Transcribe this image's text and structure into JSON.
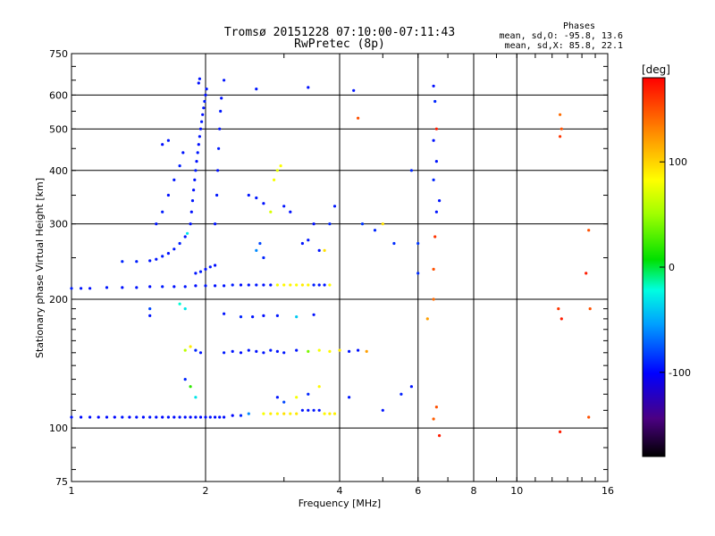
{
  "chart_data": {
    "type": "scatter",
    "title": "Tromsø 20151228 07:10:00-07:11:43",
    "subtitle": "RwPretec (8p)",
    "stats": {
      "heading": "Phases",
      "line1": "mean, sd,O: -95.8, 13.6",
      "line2": "mean, sd,X:  85.8, 22.1"
    },
    "xlabel": "Frequency [MHz]",
    "ylabel": "Stationary phase Virtual Height [km]",
    "x_scale": "log",
    "y_scale": "log",
    "xlim": [
      1,
      16
    ],
    "ylim": [
      75,
      750
    ],
    "x_ticks": [
      1,
      2,
      4,
      6,
      8,
      10,
      16
    ],
    "y_ticks": [
      75,
      100,
      200,
      300,
      400,
      500,
      600,
      750
    ],
    "grid": true,
    "colorbar": {
      "label": "[deg]",
      "range": [
        -180,
        180
      ],
      "ticks": [
        100,
        0,
        -100
      ]
    },
    "series": [
      {
        "points": [
          [
            1.0,
            106,
            -95
          ],
          [
            1.05,
            106,
            -98
          ],
          [
            1.1,
            106,
            -96
          ],
          [
            1.15,
            106,
            -100
          ],
          [
            1.2,
            106,
            -97
          ],
          [
            1.25,
            106,
            -99
          ],
          [
            1.3,
            106,
            -95
          ],
          [
            1.35,
            106,
            -100
          ],
          [
            1.4,
            106,
            -96
          ],
          [
            1.45,
            106,
            -98
          ],
          [
            1.5,
            106,
            -94
          ],
          [
            1.55,
            106,
            -97
          ],
          [
            1.6,
            106,
            -99
          ],
          [
            1.65,
            106,
            -96
          ],
          [
            1.7,
            106,
            -98
          ],
          [
            1.75,
            106,
            -95
          ],
          [
            1.8,
            106,
            -97
          ],
          [
            1.85,
            106,
            -99
          ],
          [
            1.9,
            106,
            -96
          ],
          [
            1.95,
            106,
            -98
          ],
          [
            2.0,
            106,
            -97
          ],
          [
            2.05,
            106,
            -95
          ],
          [
            2.1,
            106,
            -98
          ],
          [
            2.15,
            106,
            -96
          ],
          [
            2.2,
            106,
            -97
          ],
          [
            2.3,
            107,
            -99
          ],
          [
            2.4,
            107,
            -90
          ],
          [
            2.5,
            108,
            -60
          ],
          [
            2.7,
            108,
            80
          ],
          [
            2.8,
            108,
            90
          ],
          [
            2.9,
            108,
            85
          ],
          [
            3.0,
            108,
            95
          ],
          [
            3.1,
            108,
            88
          ],
          [
            3.2,
            108,
            92
          ],
          [
            3.3,
            110,
            -95
          ],
          [
            3.4,
            110,
            -97
          ],
          [
            3.5,
            110,
            -94
          ],
          [
            3.6,
            110,
            -96
          ],
          [
            3.7,
            108,
            85
          ],
          [
            3.8,
            108,
            90
          ],
          [
            3.9,
            108,
            88
          ],
          [
            1.0,
            212,
            -92
          ],
          [
            1.05,
            212,
            -95
          ],
          [
            1.1,
            212,
            -97
          ],
          [
            1.2,
            213,
            -94
          ],
          [
            1.3,
            213,
            -96
          ],
          [
            1.4,
            213,
            -95
          ],
          [
            1.5,
            214,
            -97
          ],
          [
            1.6,
            214,
            -93
          ],
          [
            1.7,
            214,
            -96
          ],
          [
            1.8,
            214,
            -95
          ],
          [
            1.9,
            215,
            -97
          ],
          [
            2.0,
            215,
            -94
          ],
          [
            2.1,
            215,
            -96
          ],
          [
            2.2,
            215,
            -95
          ],
          [
            2.3,
            216,
            -93
          ],
          [
            2.4,
            216,
            -97
          ],
          [
            2.5,
            216,
            -95
          ],
          [
            2.6,
            216,
            -94
          ],
          [
            2.7,
            216,
            -96
          ],
          [
            2.8,
            216,
            -95
          ],
          [
            2.9,
            216,
            80
          ],
          [
            3.0,
            216,
            85
          ],
          [
            3.1,
            216,
            88
          ],
          [
            3.2,
            216,
            82
          ],
          [
            3.3,
            216,
            90
          ],
          [
            3.4,
            216,
            86
          ],
          [
            3.5,
            216,
            -92
          ],
          [
            3.6,
            216,
            -95
          ],
          [
            3.7,
            216,
            -94
          ],
          [
            3.8,
            216,
            84
          ],
          [
            1.3,
            245,
            -90
          ],
          [
            1.4,
            245,
            -92
          ],
          [
            1.5,
            246,
            -94
          ],
          [
            1.55,
            248,
            -95
          ],
          [
            1.6,
            252,
            -93
          ],
          [
            1.65,
            256,
            -96
          ],
          [
            1.7,
            262,
            -94
          ],
          [
            1.75,
            270,
            -92
          ],
          [
            1.8,
            280,
            -95
          ],
          [
            1.82,
            285,
            -30
          ],
          [
            1.55,
            300,
            -95
          ],
          [
            1.6,
            320,
            -93
          ],
          [
            1.65,
            350,
            -96
          ],
          [
            1.7,
            380,
            -94
          ],
          [
            1.75,
            410,
            -92
          ],
          [
            1.78,
            440,
            -95
          ],
          [
            1.6,
            460,
            -97
          ],
          [
            1.65,
            470,
            -94
          ],
          [
            1.85,
            300,
            -95
          ],
          [
            1.86,
            320,
            -96
          ],
          [
            1.87,
            340,
            -94
          ],
          [
            1.88,
            360,
            -97
          ],
          [
            1.89,
            380,
            -95
          ],
          [
            1.9,
            400,
            -93
          ],
          [
            1.91,
            420,
            -96
          ],
          [
            1.92,
            440,
            -94
          ],
          [
            1.93,
            460,
            -97
          ],
          [
            1.94,
            480,
            -95
          ],
          [
            1.95,
            500,
            -96
          ],
          [
            1.96,
            520,
            -94
          ],
          [
            1.97,
            540,
            -97
          ],
          [
            1.98,
            560,
            -95
          ],
          [
            1.99,
            580,
            -93
          ],
          [
            2.0,
            600,
            -96
          ],
          [
            2.01,
            620,
            -94
          ],
          [
            1.93,
            640,
            -97
          ],
          [
            1.94,
            655,
            -95
          ],
          [
            1.9,
            230,
            -95
          ],
          [
            1.95,
            232,
            -93
          ],
          [
            2.0,
            235,
            -96
          ],
          [
            2.05,
            238,
            -94
          ],
          [
            2.1,
            240,
            -97
          ],
          [
            2.1,
            300,
            -95
          ],
          [
            2.12,
            350,
            -94
          ],
          [
            2.13,
            400,
            -96
          ],
          [
            2.14,
            450,
            -93
          ],
          [
            2.15,
            500,
            -95
          ],
          [
            2.16,
            550,
            -94
          ],
          [
            2.17,
            590,
            -96
          ],
          [
            2.5,
            350,
            -95
          ],
          [
            2.6,
            345,
            -94
          ],
          [
            2.7,
            335,
            -96
          ],
          [
            2.8,
            320,
            70
          ],
          [
            2.85,
            380,
            80
          ],
          [
            2.9,
            400,
            75
          ],
          [
            2.95,
            410,
            82
          ],
          [
            2.6,
            260,
            -60
          ],
          [
            2.65,
            270,
            -80
          ],
          [
            2.7,
            250,
            -90
          ],
          [
            3.0,
            330,
            -95
          ],
          [
            3.1,
            320,
            -96
          ],
          [
            3.3,
            270,
            -95
          ],
          [
            3.4,
            275,
            -94
          ],
          [
            3.5,
            300,
            -96
          ],
          [
            3.6,
            260,
            -95
          ],
          [
            3.7,
            260,
            95
          ],
          [
            3.8,
            300,
            -90
          ],
          [
            3.9,
            330,
            -94
          ],
          [
            2.2,
            185,
            -95
          ],
          [
            1.5,
            190,
            -80
          ],
          [
            1.75,
            195,
            -20
          ],
          [
            1.8,
            190,
            -30
          ],
          [
            2.4,
            182,
            -90
          ],
          [
            2.55,
            182,
            -95
          ],
          [
            2.7,
            183,
            -97
          ],
          [
            2.9,
            183,
            -94
          ],
          [
            3.2,
            182,
            -40
          ],
          [
            3.5,
            184,
            -96
          ],
          [
            1.8,
            152,
            60
          ],
          [
            1.85,
            155,
            90
          ],
          [
            1.9,
            152,
            -90
          ],
          [
            1.95,
            150,
            -95
          ],
          [
            2.2,
            150,
            -93
          ],
          [
            2.3,
            151,
            -95
          ],
          [
            2.4,
            150,
            -97
          ],
          [
            2.5,
            152,
            -94
          ],
          [
            2.6,
            151,
            -96
          ],
          [
            2.7,
            150,
            -95
          ],
          [
            2.8,
            152,
            -93
          ],
          [
            2.9,
            151,
            -96
          ],
          [
            3.0,
            150,
            -94
          ],
          [
            3.2,
            152,
            -95
          ],
          [
            3.4,
            151,
            40
          ],
          [
            3.6,
            152,
            80
          ],
          [
            3.8,
            151,
            85
          ],
          [
            4.0,
            152,
            90
          ],
          [
            4.2,
            151,
            -95
          ],
          [
            4.4,
            152,
            -96
          ],
          [
            4.6,
            151,
            120
          ],
          [
            1.8,
            130,
            -90
          ],
          [
            1.85,
            125,
            20
          ],
          [
            1.9,
            118,
            -30
          ],
          [
            2.9,
            118,
            -95
          ],
          [
            3.0,
            115,
            -80
          ],
          [
            3.2,
            118,
            80
          ],
          [
            3.4,
            120,
            -90
          ],
          [
            3.6,
            125,
            85
          ],
          [
            4.2,
            118,
            -94
          ],
          [
            5.0,
            110,
            -95
          ],
          [
            5.5,
            120,
            -92
          ],
          [
            5.8,
            125,
            -95
          ],
          [
            1.5,
            183,
            -95
          ],
          [
            2.2,
            650,
            -95
          ],
          [
            2.6,
            620,
            -94
          ],
          [
            3.4,
            625,
            -96
          ],
          [
            4.3,
            615,
            -95
          ],
          [
            4.4,
            530,
            150
          ],
          [
            6.3,
            180,
            120
          ],
          [
            6.5,
            200,
            140
          ],
          [
            6.5,
            235,
            150
          ],
          [
            6.55,
            280,
            160
          ],
          [
            6.6,
            320,
            -95
          ],
          [
            6.7,
            340,
            -95
          ],
          [
            6.5,
            380,
            -90
          ],
          [
            6.6,
            420,
            -95
          ],
          [
            6.5,
            470,
            -96
          ],
          [
            6.6,
            500,
            170
          ],
          [
            6.55,
            580,
            -90
          ],
          [
            6.5,
            630,
            -97
          ],
          [
            6.6,
            112,
            150
          ],
          [
            6.7,
            96,
            170
          ],
          [
            6.5,
            105,
            145
          ],
          [
            12.5,
            540,
            140
          ],
          [
            12.6,
            500,
            150
          ],
          [
            12.5,
            480,
            160
          ],
          [
            12.4,
            190,
            160
          ],
          [
            12.6,
            180,
            170
          ],
          [
            12.5,
            98,
            170
          ],
          [
            14.5,
            290,
            150
          ],
          [
            14.3,
            230,
            170
          ],
          [
            14.6,
            190,
            150
          ],
          [
            14.5,
            106,
            150
          ],
          [
            6.0,
            270,
            -85
          ],
          [
            6.0,
            230,
            -88
          ],
          [
            5.8,
            400,
            -90
          ],
          [
            4.5,
            300,
            -85
          ],
          [
            4.8,
            290,
            -90
          ],
          [
            5.0,
            300,
            95
          ],
          [
            5.3,
            270,
            -88
          ]
        ]
      }
    ]
  }
}
